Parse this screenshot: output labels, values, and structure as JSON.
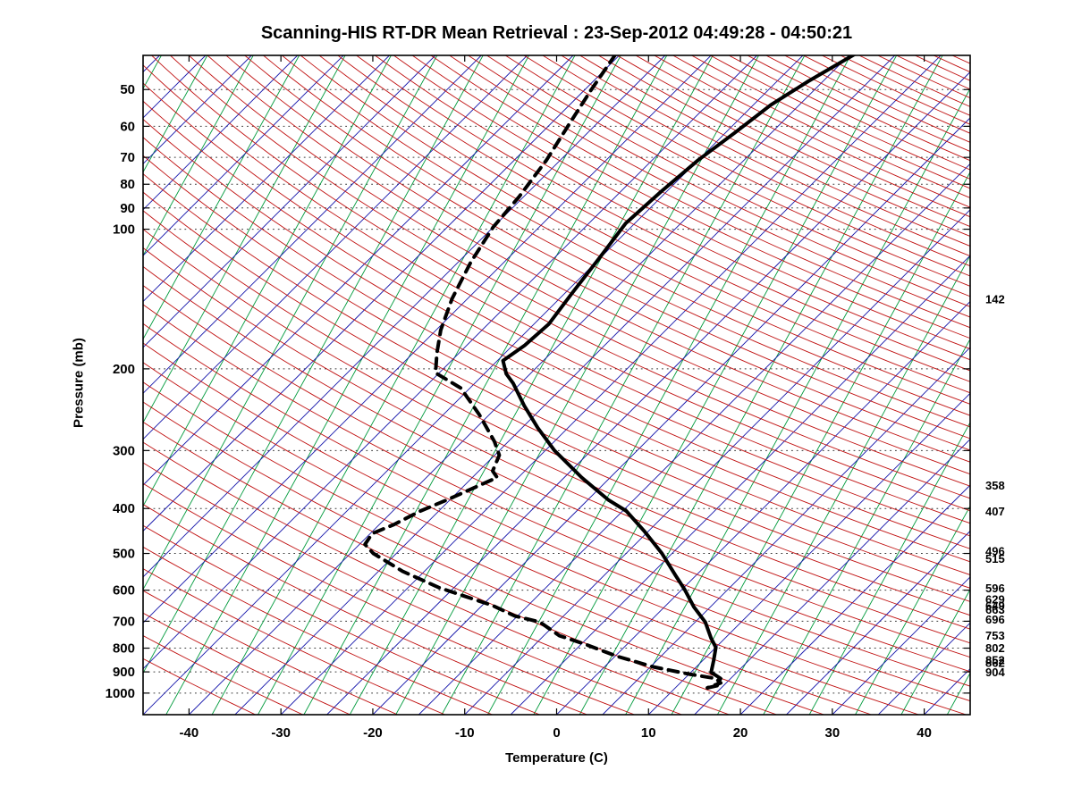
{
  "title": "Scanning-HIS RT-DR Mean Retrieval : 23-Sep-2012 04:49:28 - 04:50:21",
  "chart_data": {
    "type": "line",
    "diagram": "skew-t-log-p",
    "xlabel": "Temperature (C)",
    "ylabel": "Pressure (mb)",
    "x_ticks": [
      -40,
      -30,
      -20,
      -10,
      0,
      10,
      20,
      30,
      40
    ],
    "pressure_ticks": [
      50,
      60,
      70,
      80,
      90,
      100,
      200,
      300,
      400,
      500,
      600,
      700,
      800,
      900,
      1000
    ],
    "x_range_at_surface": [
      -45,
      45
    ],
    "pressure_range": [
      42.2,
      1113
    ],
    "skew": 1.0,
    "grid": "dotted-horizontal",
    "right_axis_labels": [
      142,
      358,
      407,
      496,
      515,
      596,
      629,
      649,
      663,
      696,
      753,
      802,
      852,
      862,
      904
    ],
    "background_lines": {
      "isotherms": {
        "color": "#1414AA",
        "start": -115,
        "end": 45,
        "step": 5
      },
      "dry_adiabats": {
        "color": "#C01010",
        "theta_start": -40,
        "theta_end": 340,
        "step": 5
      },
      "mixing_lines": {
        "color": "#009A3C",
        "start": -82.5,
        "end": 42.5,
        "step": 5,
        "slope": 0.55
      }
    },
    "series": [
      {
        "name": "temperature",
        "style": "solid",
        "color": "#000000",
        "width": 4,
        "points": [
          [
            42,
            -39.5
          ],
          [
            48,
            -41.6
          ],
          [
            54,
            -43.1
          ],
          [
            62,
            -44.0
          ],
          [
            71,
            -45.0
          ],
          [
            83,
            -45.6
          ],
          [
            97,
            -46.0
          ],
          [
            115,
            -45.1
          ],
          [
            138,
            -44.2
          ],
          [
            160,
            -43.4
          ],
          [
            178,
            -43.7
          ],
          [
            192,
            -44.4
          ],
          [
            205,
            -42.6
          ],
          [
            215,
            -40.8
          ],
          [
            240,
            -37.2
          ],
          [
            268,
            -33.3
          ],
          [
            300,
            -29.0
          ],
          [
            343,
            -23.1
          ],
          [
            383,
            -17.8
          ],
          [
            405,
            -14.6
          ],
          [
            447,
            -10.5
          ],
          [
            500,
            -6.1
          ],
          [
            558,
            -2.2
          ],
          [
            598,
            0.3
          ],
          [
            652,
            3.2
          ],
          [
            703,
            6.1
          ],
          [
            762,
            8.5
          ],
          [
            797,
            10.0
          ],
          [
            851,
            11.2
          ],
          [
            902,
            12.2
          ],
          [
            930,
            13.9
          ],
          [
            964,
            14.3
          ],
          [
            975,
            13.5
          ]
        ]
      },
      {
        "name": "dewpoint",
        "style": "dashed",
        "color": "#000000",
        "width": 4,
        "points": [
          [
            42,
            -65.5
          ],
          [
            50,
            -64.3
          ],
          [
            59,
            -63.0
          ],
          [
            71,
            -61.5
          ],
          [
            85,
            -60.5
          ],
          [
            99,
            -60.0
          ],
          [
            118,
            -58.6
          ],
          [
            141,
            -56.7
          ],
          [
            165,
            -54.5
          ],
          [
            185,
            -52.4
          ],
          [
            204,
            -50.4
          ],
          [
            220,
            -46.0
          ],
          [
            251,
            -41.1
          ],
          [
            287,
            -36.5
          ],
          [
            307,
            -34.5
          ],
          [
            332,
            -33.5
          ],
          [
            343,
            -32.3
          ],
          [
            383,
            -35.3
          ],
          [
            405,
            -37.0
          ],
          [
            433,
            -38.4
          ],
          [
            453,
            -39.8
          ],
          [
            478,
            -39.4
          ],
          [
            500,
            -37.5
          ],
          [
            546,
            -32.4
          ],
          [
            592,
            -26.7
          ],
          [
            619,
            -22.8
          ],
          [
            647,
            -18.9
          ],
          [
            682,
            -15.3
          ],
          [
            703,
            -11.9
          ],
          [
            752,
            -8.3
          ],
          [
            786,
            -4.4
          ],
          [
            833,
            0.2
          ],
          [
            878,
            5.3
          ],
          [
            910,
            10.0
          ],
          [
            930,
            13.4
          ],
          [
            951,
            14.4
          ],
          [
            973,
            13.5
          ]
        ]
      }
    ]
  }
}
